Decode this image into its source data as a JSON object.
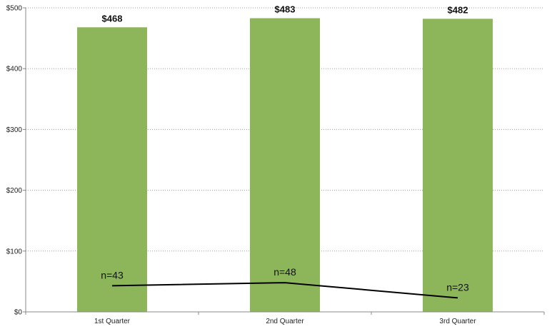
{
  "chart_data": {
    "type": "bar",
    "categories": [
      "1st Quarter",
      "2nd Quarter",
      "3rd Quarter"
    ],
    "series": [
      {
        "type": "bar",
        "values": [
          468,
          483,
          482
        ],
        "labels": [
          "$468",
          "$483",
          "$482"
        ],
        "color": "#8db65b"
      },
      {
        "type": "line",
        "values": [
          43,
          48,
          23
        ],
        "labels": [
          "n=43",
          "n=48",
          "n=23"
        ],
        "color": "#000000"
      }
    ],
    "yticks": [
      {
        "value": 0,
        "label": "$0"
      },
      {
        "value": 100,
        "label": "$100"
      },
      {
        "value": 200,
        "label": "$200"
      },
      {
        "value": 300,
        "label": "$300"
      },
      {
        "value": 400,
        "label": "$400"
      },
      {
        "value": 500,
        "label": "$500"
      }
    ],
    "ylim": [
      0,
      500
    ],
    "grid": true,
    "legend": "none",
    "title": "",
    "xlabel": "",
    "ylabel": ""
  }
}
